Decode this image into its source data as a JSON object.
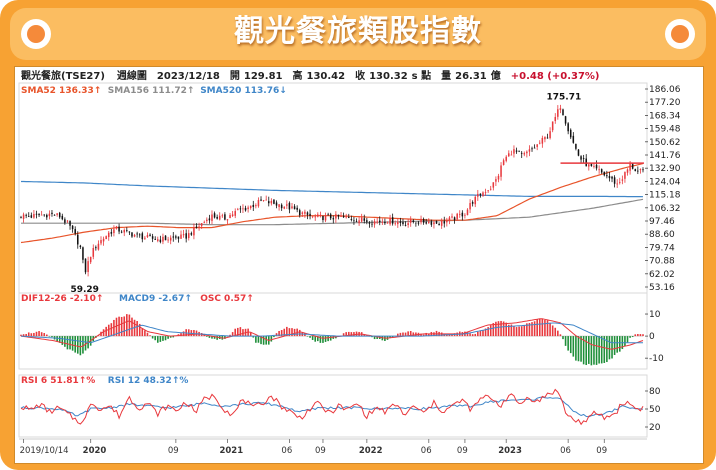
{
  "title": "觀光餐旅類股指數",
  "header": {
    "name": "觀光餐旅(TSE27)",
    "period": "週線圖",
    "date": "2023/12/18",
    "open_label": "開",
    "open": "129.81",
    "high_label": "高",
    "high": "130.42",
    "close_label": "收",
    "close": "130.32",
    "unit_label": "s 點",
    "volume_label": "量",
    "volume": "26.31",
    "volume_unit": "億",
    "change": "+0.48 (+0.37%)"
  },
  "colors": {
    "up": "#e8383d",
    "down": "#1f8f3a",
    "sma52": "#e8542a",
    "sma156": "#8c8c8c",
    "sma520": "#3f86c8",
    "dif": "#e8383d",
    "macd": "#3f86c8",
    "rsi6": "#e8383d",
    "rsi12": "#3f86c8",
    "banner": "#f7a233"
  },
  "chart_data": [
    {
      "type": "candlestick",
      "name": "price",
      "legend": [
        {
          "label": "SMA52 136.33↑",
          "color": "#e8542a"
        },
        {
          "label": "SMA156 111.72↑",
          "color": "#8c8c8c"
        },
        {
          "label": "SMA520 113.76↓",
          "color": "#3f86c8"
        }
      ],
      "ylim": [
        53.16,
        186.06
      ],
      "yticks": [
        "186.06",
        "177.20",
        "168.34",
        "159.48",
        "150.62",
        "141.76",
        "132.90",
        "124.04",
        "115.18",
        "106.32",
        "97.46",
        "88.60",
        "79.74",
        "70.88",
        "62.02",
        "53.16"
      ],
      "annotations": [
        {
          "label": "175.71",
          "index": 170,
          "value": 175.71
        },
        {
          "label": "59.29",
          "index": 20,
          "value": 59.29
        }
      ],
      "reference_line": 136.3,
      "close_path": [
        [
          0,
          101
        ],
        [
          3,
          100.5
        ],
        [
          6,
          101.5
        ],
        [
          9,
          102
        ],
        [
          12,
          101
        ],
        [
          15,
          95
        ],
        [
          17,
          88
        ],
        [
          19,
          78
        ],
        [
          20,
          62
        ],
        [
          22,
          75
        ],
        [
          24,
          82
        ],
        [
          26,
          86
        ],
        [
          28,
          90
        ],
        [
          30,
          92
        ],
        [
          33,
          90
        ],
        [
          36,
          88
        ],
        [
          40,
          86
        ],
        [
          44,
          85
        ],
        [
          48,
          86
        ],
        [
          52,
          87
        ],
        [
          56,
          94
        ],
        [
          60,
          101
        ],
        [
          64,
          99
        ],
        [
          68,
          104
        ],
        [
          72,
          107
        ],
        [
          76,
          111
        ],
        [
          80,
          109
        ],
        [
          84,
          107
        ],
        [
          88,
          103
        ],
        [
          92,
          100
        ],
        [
          96,
          100
        ],
        [
          100,
          100
        ],
        [
          104,
          99
        ],
        [
          108,
          98
        ],
        [
          112,
          97
        ],
        [
          116,
          98
        ],
        [
          120,
          96
        ],
        [
          124,
          97
        ],
        [
          128,
          97
        ],
        [
          132,
          96
        ],
        [
          136,
          99
        ],
        [
          140,
          103
        ],
        [
          142,
          110
        ],
        [
          145,
          116
        ],
        [
          148,
          120
        ],
        [
          150,
          126
        ],
        [
          152,
          138
        ],
        [
          155,
          145
        ],
        [
          158,
          141
        ],
        [
          160,
          144
        ],
        [
          163,
          149
        ],
        [
          166,
          155
        ],
        [
          168,
          165
        ],
        [
          170,
          175
        ],
        [
          172,
          162
        ],
        [
          174,
          150
        ],
        [
          176,
          140
        ],
        [
          179,
          134
        ],
        [
          182,
          131
        ],
        [
          185,
          127
        ],
        [
          188,
          122
        ],
        [
          190,
          128
        ],
        [
          192,
          135
        ],
        [
          194,
          131
        ],
        [
          196,
          130
        ]
      ],
      "sma52_path": [
        [
          0,
          83
        ],
        [
          10,
          86
        ],
        [
          20,
          90
        ],
        [
          30,
          93
        ],
        [
          40,
          94
        ],
        [
          50,
          93
        ],
        [
          60,
          93
        ],
        [
          70,
          97
        ],
        [
          80,
          100
        ],
        [
          90,
          101
        ],
        [
          100,
          101
        ],
        [
          110,
          100
        ],
        [
          120,
          99
        ],
        [
          130,
          98
        ],
        [
          140,
          98
        ],
        [
          150,
          101
        ],
        [
          160,
          112
        ],
        [
          170,
          120
        ],
        [
          180,
          127
        ],
        [
          190,
          133
        ],
        [
          196,
          136
        ]
      ],
      "sma156_path": [
        [
          0,
          96
        ],
        [
          20,
          96
        ],
        [
          40,
          96
        ],
        [
          60,
          95
        ],
        [
          80,
          95
        ],
        [
          100,
          96
        ],
        [
          120,
          97
        ],
        [
          140,
          98
        ],
        [
          160,
          100
        ],
        [
          180,
          106
        ],
        [
          196,
          112
        ]
      ],
      "sma520_path": [
        [
          0,
          124
        ],
        [
          20,
          123
        ],
        [
          40,
          121
        ],
        [
          60,
          119.5
        ],
        [
          80,
          118
        ],
        [
          100,
          117
        ],
        [
          120,
          116
        ],
        [
          140,
          115
        ],
        [
          160,
          114
        ],
        [
          180,
          114
        ],
        [
          196,
          113.8
        ]
      ]
    },
    {
      "type": "bar",
      "name": "macd",
      "legend": [
        {
          "label": "DIF12-26 -2.10↑",
          "color": "#e8383d"
        },
        {
          "label": "MACD9 -2.67↑",
          "color": "#3f86c8"
        },
        {
          "label": "OSC 0.57↑",
          "color": "#e8383d"
        }
      ],
      "ylim": [
        -14,
        15
      ],
      "yticks": [
        "10",
        "0",
        "-10"
      ],
      "osc_path": [
        [
          0,
          1
        ],
        [
          6,
          2
        ],
        [
          10,
          -1
        ],
        [
          15,
          -6
        ],
        [
          19,
          -9
        ],
        [
          22,
          -4
        ],
        [
          26,
          3
        ],
        [
          30,
          8
        ],
        [
          34,
          10
        ],
        [
          37,
          6
        ],
        [
          40,
          1
        ],
        [
          43,
          -3
        ],
        [
          47,
          -1
        ],
        [
          52,
          3
        ],
        [
          56,
          2
        ],
        [
          60,
          -1
        ],
        [
          64,
          -2
        ],
        [
          68,
          4
        ],
        [
          72,
          3
        ],
        [
          74,
          -3
        ],
        [
          78,
          -4
        ],
        [
          81,
          2
        ],
        [
          84,
          4
        ],
        [
          88,
          3
        ],
        [
          92,
          -2
        ],
        [
          95,
          -3
        ],
        [
          99,
          -1
        ],
        [
          103,
          2
        ],
        [
          107,
          2
        ],
        [
          111,
          -1
        ],
        [
          115,
          -2
        ],
        [
          119,
          1
        ],
        [
          123,
          2
        ],
        [
          127,
          1
        ],
        [
          131,
          2
        ],
        [
          135,
          1
        ],
        [
          139,
          2
        ],
        [
          143,
          1
        ],
        [
          147,
          4
        ],
        [
          150,
          7
        ],
        [
          153,
          6
        ],
        [
          156,
          4
        ],
        [
          160,
          6
        ],
        [
          164,
          8
        ],
        [
          167,
          6
        ],
        [
          170,
          1
        ],
        [
          172,
          -6
        ],
        [
          175,
          -11
        ],
        [
          178,
          -13
        ],
        [
          181,
          -13
        ],
        [
          184,
          -12
        ],
        [
          187,
          -9
        ],
        [
          190,
          -5
        ],
        [
          192,
          -1
        ],
        [
          194,
          1
        ],
        [
          196,
          1
        ]
      ],
      "dif_path": [
        [
          0,
          0
        ],
        [
          10,
          -2
        ],
        [
          19,
          -5
        ],
        [
          26,
          2
        ],
        [
          34,
          7
        ],
        [
          40,
          2
        ],
        [
          47,
          0
        ],
        [
          56,
          1
        ],
        [
          64,
          -1
        ],
        [
          72,
          2
        ],
        [
          78,
          -2
        ],
        [
          88,
          2
        ],
        [
          95,
          -1
        ],
        [
          107,
          1
        ],
        [
          115,
          -1
        ],
        [
          127,
          1
        ],
        [
          139,
          1
        ],
        [
          147,
          5
        ],
        [
          156,
          6
        ],
        [
          164,
          8
        ],
        [
          170,
          6
        ],
        [
          175,
          0
        ],
        [
          180,
          -4
        ],
        [
          186,
          -6
        ],
        [
          192,
          -4
        ],
        [
          196,
          -2
        ]
      ],
      "macd_path": [
        [
          0,
          0
        ],
        [
          12,
          -1
        ],
        [
          22,
          -3
        ],
        [
          30,
          1
        ],
        [
          38,
          5
        ],
        [
          46,
          2
        ],
        [
          56,
          1
        ],
        [
          66,
          0
        ],
        [
          76,
          0
        ],
        [
          88,
          1
        ],
        [
          100,
          0
        ],
        [
          112,
          0
        ],
        [
          126,
          0
        ],
        [
          140,
          1
        ],
        [
          150,
          4
        ],
        [
          160,
          5
        ],
        [
          168,
          6
        ],
        [
          174,
          5
        ],
        [
          180,
          1
        ],
        [
          186,
          -3
        ],
        [
          192,
          -3
        ],
        [
          196,
          -3
        ]
      ]
    },
    {
      "type": "line",
      "name": "rsi",
      "legend": [
        {
          "label": "RSI 6 51.81↑%",
          "color": "#e8383d"
        },
        {
          "label": "RSI 12 48.32↑%",
          "color": "#3f86c8"
        }
      ],
      "ylim": [
        10,
        90
      ],
      "yticks": [
        "80",
        "50",
        "20"
      ],
      "rsi6_path": [
        [
          0,
          55
        ],
        [
          3,
          48
        ],
        [
          6,
          58
        ],
        [
          9,
          45
        ],
        [
          12,
          52
        ],
        [
          15,
          40
        ],
        [
          18,
          30
        ],
        [
          20,
          28
        ],
        [
          22,
          62
        ],
        [
          25,
          50
        ],
        [
          28,
          55
        ],
        [
          31,
          38
        ],
        [
          34,
          70
        ],
        [
          37,
          52
        ],
        [
          40,
          60
        ],
        [
          43,
          42
        ],
        [
          46,
          55
        ],
        [
          49,
          47
        ],
        [
          52,
          62
        ],
        [
          55,
          45
        ],
        [
          58,
          68
        ],
        [
          61,
          72
        ],
        [
          64,
          50
        ],
        [
          67,
          40
        ],
        [
          70,
          68
        ],
        [
          73,
          50
        ],
        [
          76,
          60
        ],
        [
          79,
          72
        ],
        [
          82,
          55
        ],
        [
          85,
          45
        ],
        [
          88,
          35
        ],
        [
          91,
          50
        ],
        [
          94,
          60
        ],
        [
          97,
          42
        ],
        [
          100,
          55
        ],
        [
          103,
          48
        ],
        [
          106,
          60
        ],
        [
          109,
          38
        ],
        [
          112,
          52
        ],
        [
          115,
          45
        ],
        [
          118,
          58
        ],
        [
          121,
          40
        ],
        [
          124,
          55
        ],
        [
          127,
          42
        ],
        [
          130,
          60
        ],
        [
          133,
          46
        ],
        [
          136,
          55
        ],
        [
          139,
          65
        ],
        [
          142,
          48
        ],
        [
          145,
          68
        ],
        [
          148,
          70
        ],
        [
          151,
          55
        ],
        [
          154,
          75
        ],
        [
          157,
          58
        ],
        [
          160,
          70
        ],
        [
          163,
          62
        ],
        [
          166,
          75
        ],
        [
          169,
          82
        ],
        [
          172,
          40
        ],
        [
          175,
          30
        ],
        [
          178,
          28
        ],
        [
          181,
          45
        ],
        [
          184,
          35
        ],
        [
          187,
          42
        ],
        [
          190,
          62
        ],
        [
          192,
          58
        ],
        [
          194,
          50
        ],
        [
          196,
          52
        ]
      ],
      "rsi12_path": [
        [
          0,
          52
        ],
        [
          6,
          52
        ],
        [
          12,
          50
        ],
        [
          18,
          38
        ],
        [
          22,
          50
        ],
        [
          28,
          52
        ],
        [
          34,
          58
        ],
        [
          40,
          55
        ],
        [
          46,
          52
        ],
        [
          52,
          55
        ],
        [
          58,
          60
        ],
        [
          64,
          55
        ],
        [
          70,
          58
        ],
        [
          76,
          60
        ],
        [
          82,
          55
        ],
        [
          88,
          45
        ],
        [
          94,
          52
        ],
        [
          100,
          52
        ],
        [
          106,
          52
        ],
        [
          112,
          50
        ],
        [
          118,
          52
        ],
        [
          124,
          50
        ],
        [
          130,
          52
        ],
        [
          136,
          55
        ],
        [
          142,
          55
        ],
        [
          148,
          62
        ],
        [
          154,
          65
        ],
        [
          160,
          65
        ],
        [
          166,
          70
        ],
        [
          170,
          68
        ],
        [
          174,
          45
        ],
        [
          178,
          38
        ],
        [
          184,
          42
        ],
        [
          190,
          55
        ],
        [
          194,
          50
        ],
        [
          196,
          48
        ]
      ]
    }
  ],
  "x_axis": {
    "ticks": [
      {
        "label": "2019/10/14",
        "index": 1
      },
      {
        "label": "2020",
        "index": 27
      },
      {
        "label": "09",
        "index": 60
      },
      {
        "label": "2021",
        "index": 80
      },
      {
        "label": "06",
        "index": 104
      },
      {
        "label": "09",
        "index": 117
      },
      {
        "label": "2022",
        "index": 134
      },
      {
        "label": "06",
        "index": 158
      },
      {
        "label": "09",
        "index": 172
      },
      {
        "label": "2023",
        "index": 188
      },
      {
        "label": "06",
        "index": 212
      },
      {
        "label": "09",
        "index": 226
      }
    ],
    "count": 242
  }
}
